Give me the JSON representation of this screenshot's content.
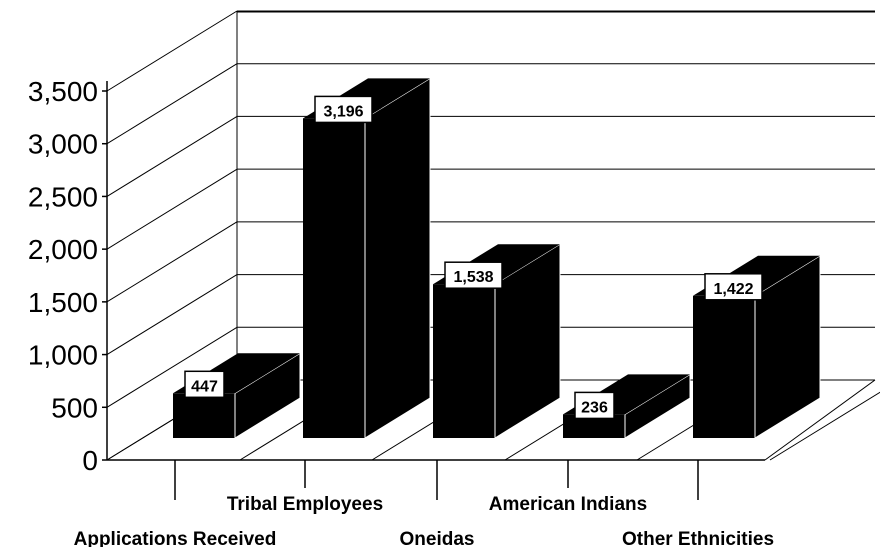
{
  "chart_data": {
    "type": "bar",
    "title": "",
    "xlabel": "",
    "ylabel": "",
    "categories": [
      "Applications Received",
      "Tribal Employees",
      "Oneidas",
      "American Indians",
      "Other Ethnicities"
    ],
    "values": [
      447,
      3196,
      1538,
      236,
      1422
    ],
    "data_labels": [
      "447",
      "3,196",
      "1,538",
      "236",
      "1,422"
    ],
    "y_ticks": [
      "0",
      "500",
      "1,000",
      "1,500",
      "2,000",
      "2,500",
      "3,000",
      "3,500"
    ],
    "y_tick_values": [
      0,
      500,
      1000,
      1500,
      2000,
      2500,
      3000,
      3500
    ],
    "ylim": [
      0,
      3500
    ],
    "grid": true,
    "style": "3d",
    "bar_color": "#000000"
  }
}
